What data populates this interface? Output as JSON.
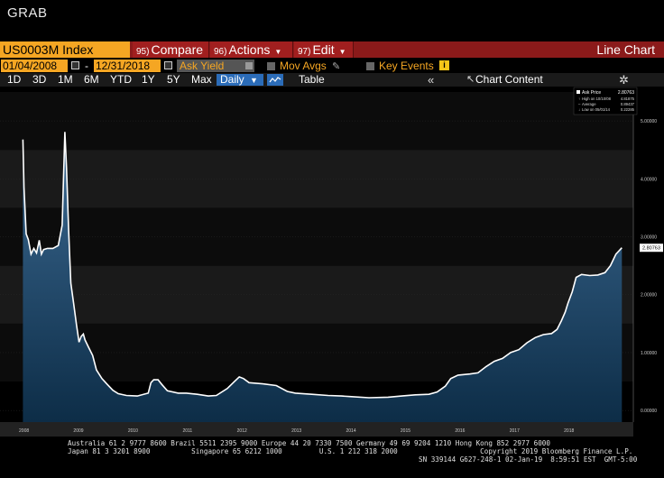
{
  "window": {
    "title": "GRAB"
  },
  "toolbar": {
    "ticker": "US0003M Index",
    "compare": {
      "num": "95)",
      "label": "Compare"
    },
    "actions": {
      "num": "96)",
      "label": "Actions"
    },
    "edit": {
      "num": "97)",
      "label": "Edit"
    },
    "chart_type_label": "Line Chart"
  },
  "fields": {
    "start_date": "01/04/2008",
    "end_date": "12/31/2018",
    "date_separator": "-",
    "field": "Ask Yield",
    "mov_avgs": "Mov Avgs",
    "key_events": "Key Events",
    "info_glyph": "i"
  },
  "periods": {
    "buttons": [
      "1D",
      "3D",
      "1M",
      "6M",
      "YTD",
      "1Y",
      "5Y",
      "Max"
    ],
    "frequency": "Daily",
    "table": "Table",
    "chart_content": "Chart Content"
  },
  "legend": {
    "series": "Ask Price",
    "series_value": "2.80763",
    "high_label": "High on 10/10/08",
    "high_value": "4.81875",
    "average_label": "Average",
    "average_value": "0.89437",
    "low_label": "Low on 05/01/14",
    "low_value": "0.22285"
  },
  "chart_data": {
    "type": "area",
    "x_ticks": [
      "2008",
      "2009",
      "2010",
      "2011",
      "2012",
      "2013",
      "2014",
      "2015",
      "2016",
      "2017",
      "2018"
    ],
    "y_ticks": [
      "0.00000",
      "1.00000",
      "2.00000",
      "3.00000",
      "4.00000",
      "5.00000"
    ],
    "ylim": [
      0,
      5.5
    ],
    "last_value_label": "2.80763",
    "series": [
      {
        "name": "Ask Price",
        "points": [
          [
            2008.0,
            4.68
          ],
          [
            2008.02,
            3.85
          ],
          [
            2008.06,
            3.05
          ],
          [
            2008.1,
            2.95
          ],
          [
            2008.15,
            2.7
          ],
          [
            2008.2,
            2.8
          ],
          [
            2008.25,
            2.72
          ],
          [
            2008.3,
            2.94
          ],
          [
            2008.34,
            2.7
          ],
          [
            2008.38,
            2.78
          ],
          [
            2008.45,
            2.8
          ],
          [
            2008.55,
            2.8
          ],
          [
            2008.65,
            2.85
          ],
          [
            2008.72,
            3.2
          ],
          [
            2008.77,
            4.81
          ],
          [
            2008.8,
            4.2
          ],
          [
            2008.84,
            3.1
          ],
          [
            2008.88,
            2.2
          ],
          [
            2008.93,
            1.85
          ],
          [
            2008.98,
            1.5
          ],
          [
            2009.03,
            1.18
          ],
          [
            2009.07,
            1.28
          ],
          [
            2009.11,
            1.32
          ],
          [
            2009.14,
            1.22
          ],
          [
            2009.2,
            1.1
          ],
          [
            2009.28,
            0.95
          ],
          [
            2009.35,
            0.7
          ],
          [
            2009.45,
            0.55
          ],
          [
            2009.55,
            0.45
          ],
          [
            2009.65,
            0.35
          ],
          [
            2009.75,
            0.29
          ],
          [
            2009.9,
            0.26
          ],
          [
            2010.1,
            0.25
          ],
          [
            2010.3,
            0.3
          ],
          [
            2010.35,
            0.48
          ],
          [
            2010.4,
            0.53
          ],
          [
            2010.48,
            0.53
          ],
          [
            2010.55,
            0.45
          ],
          [
            2010.65,
            0.34
          ],
          [
            2010.85,
            0.3
          ],
          [
            2011.0,
            0.3
          ],
          [
            2011.2,
            0.28
          ],
          [
            2011.4,
            0.25
          ],
          [
            2011.55,
            0.26
          ],
          [
            2011.75,
            0.38
          ],
          [
            2011.88,
            0.5
          ],
          [
            2011.97,
            0.58
          ],
          [
            2012.05,
            0.55
          ],
          [
            2012.15,
            0.48
          ],
          [
            2012.4,
            0.46
          ],
          [
            2012.65,
            0.43
          ],
          [
            2012.85,
            0.33
          ],
          [
            2013.0,
            0.3
          ],
          [
            2013.3,
            0.28
          ],
          [
            2013.6,
            0.26
          ],
          [
            2013.85,
            0.25
          ],
          [
            2014.0,
            0.24
          ],
          [
            2014.35,
            0.22
          ],
          [
            2014.7,
            0.23
          ],
          [
            2014.95,
            0.25
          ],
          [
            2015.2,
            0.27
          ],
          [
            2015.45,
            0.28
          ],
          [
            2015.6,
            0.32
          ],
          [
            2015.75,
            0.42
          ],
          [
            2015.85,
            0.55
          ],
          [
            2015.98,
            0.61
          ],
          [
            2016.2,
            0.63
          ],
          [
            2016.35,
            0.65
          ],
          [
            2016.5,
            0.76
          ],
          [
            2016.65,
            0.85
          ],
          [
            2016.8,
            0.9
          ],
          [
            2016.95,
            1.0
          ],
          [
            2017.1,
            1.05
          ],
          [
            2017.25,
            1.17
          ],
          [
            2017.4,
            1.26
          ],
          [
            2017.55,
            1.31
          ],
          [
            2017.7,
            1.33
          ],
          [
            2017.8,
            1.4
          ],
          [
            2017.88,
            1.55
          ],
          [
            2017.95,
            1.7
          ],
          [
            2018.0,
            1.85
          ],
          [
            2018.08,
            2.05
          ],
          [
            2018.15,
            2.3
          ],
          [
            2018.25,
            2.35
          ],
          [
            2018.4,
            2.33
          ],
          [
            2018.55,
            2.34
          ],
          [
            2018.68,
            2.38
          ],
          [
            2018.78,
            2.5
          ],
          [
            2018.88,
            2.7
          ],
          [
            2018.99,
            2.81
          ]
        ]
      }
    ]
  },
  "footer": {
    "line1": "Australia 61 2 9777 8600 Brazil 5511 2395 9000 Europe 44 20 7330 7500 Germany 49 69 9204 1210 Hong Kong 852 2977 6000",
    "line2": "Japan 81 3 3201 8900          Singapore 65 6212 1000         U.S. 1 212 318 2000                    Copyright 2019 Bloomberg Finance L.P.",
    "line3": "SN 339144 G627-248-1 02-Jan-19  8:59:51 EST  GMT-5:00"
  },
  "colors": {
    "ticker_bg": "#f5a623",
    "bar_red": "#8b1a1a",
    "line": "#ffffff",
    "area_top": "#3d6b94",
    "area_bottom": "#0d2d47"
  }
}
